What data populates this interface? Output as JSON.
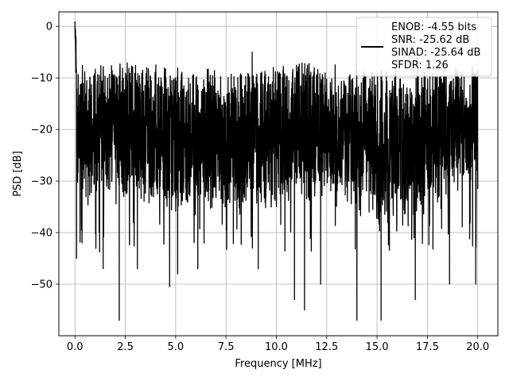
{
  "chart_data": {
    "type": "line",
    "title": "",
    "xlabel": "Frequency [MHz]",
    "ylabel": "PSD [dB]",
    "xlim": [
      -0.8,
      21.0
    ],
    "ylim": [
      -60,
      2.8
    ],
    "xticks": [
      {
        "value": 0.0,
        "label": "0.0"
      },
      {
        "value": 2.5,
        "label": "2.5"
      },
      {
        "value": 5.0,
        "label": "5.0"
      },
      {
        "value": 7.5,
        "label": "7.5"
      },
      {
        "value": 10.0,
        "label": "10.0"
      },
      {
        "value": 12.5,
        "label": "12.5"
      },
      {
        "value": 15.0,
        "label": "15.0"
      },
      {
        "value": 17.5,
        "label": "17.5"
      },
      {
        "value": 20.0,
        "label": "20.0"
      }
    ],
    "yticks": [
      {
        "value": 0,
        "label": "0"
      },
      {
        "value": -10,
        "label": "−10"
      },
      {
        "value": -20,
        "label": "−20"
      },
      {
        "value": -30,
        "label": "−30"
      },
      {
        "value": -40,
        "label": "−40"
      },
      {
        "value": -50,
        "label": "−50"
      }
    ],
    "grid": true,
    "legend_position": "top-right",
    "series": [
      {
        "name": "ENOB: -4.55 bits\nSNR: -25.62 dB\nSINAD: -25.64 dB\nSFDR: 1.26",
        "legend_lines": [
          "ENOB: -4.55 bits",
          "SNR: -25.62 dB",
          "SINAD: -25.64 dB",
          "SFDR: 1.26"
        ],
        "color": "#000000",
        "peak": {
          "x": 0.0,
          "y": 0.0
        },
        "noise_floor_mean": -21,
        "upper_envelope": -9,
        "lower_envelope": -38,
        "deep_dips": [
          {
            "x": 0.08,
            "y": -45
          },
          {
            "x": 0.35,
            "y": -42
          },
          {
            "x": 1.4,
            "y": -47
          },
          {
            "x": 2.2,
            "y": -57
          },
          {
            "x": 3.1,
            "y": -47
          },
          {
            "x": 4.7,
            "y": -50.5
          },
          {
            "x": 5.1,
            "y": -48
          },
          {
            "x": 6.1,
            "y": -47
          },
          {
            "x": 9.1,
            "y": -47
          },
          {
            "x": 10.9,
            "y": -53
          },
          {
            "x": 11.4,
            "y": -55
          },
          {
            "x": 12.2,
            "y": -50
          },
          {
            "x": 14.0,
            "y": -57
          },
          {
            "x": 15.2,
            "y": -57
          },
          {
            "x": 16.9,
            "y": -53
          },
          {
            "x": 18.6,
            "y": -50
          },
          {
            "x": 19.9,
            "y": -50
          }
        ],
        "high_spikes": [
          {
            "x": 0.05,
            "y": -2
          },
          {
            "x": 8.8,
            "y": -5
          },
          {
            "x": 17.0,
            "y": -6
          }
        ]
      }
    ]
  }
}
